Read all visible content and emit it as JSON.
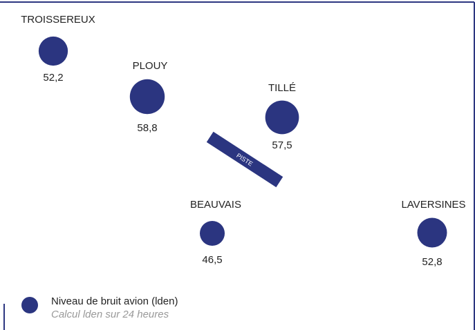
{
  "chart_data": {
    "type": "bubble-map",
    "categories": [
      "TROISSEREUX",
      "PLOUY",
      "TILLÉ",
      "BEAUVAIS",
      "LAVERSINES"
    ],
    "values": [
      52.2,
      58.8,
      57.5,
      46.5,
      52.8
    ],
    "value_labels": [
      "52,2",
      "58,8",
      "57,5",
      "46,5",
      "52,8"
    ],
    "color": "#2b3580",
    "runway_label": "PISTE",
    "legend": {
      "title": "Niveau de bruit avion (lden)",
      "subtitle": "Calcul lden sur 24 heures"
    }
  }
}
